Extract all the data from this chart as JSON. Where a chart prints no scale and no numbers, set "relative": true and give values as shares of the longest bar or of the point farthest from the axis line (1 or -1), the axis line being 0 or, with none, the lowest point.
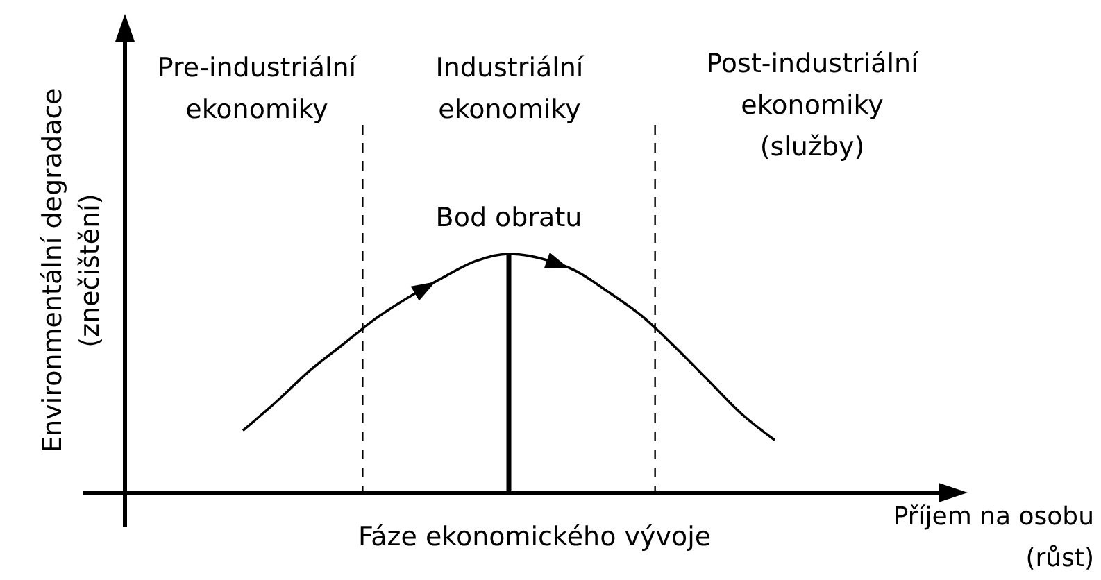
{
  "chart_data": {
    "type": "line",
    "relative": true,
    "ylabel": "Environmentální degradace\n(znečištění)",
    "xlabel": "Fáze ekonomického vývoje",
    "categories": [
      null,
      null,
      null,
      null,
      null,
      null,
      null,
      null,
      null,
      null,
      null,
      null,
      null,
      null,
      null,
      null,
      null
    ],
    "series": [
      {
        "color": "#000000",
        "values": [
          0.26,
          0.38,
          0.51,
          0.62,
          0.73,
          0.82,
          0.9,
          0.97,
          1,
          0.98,
          0.93,
          0.84,
          0.74,
          0.61,
          0.47,
          0.33,
          0.22
        ]
      }
    ],
    "annotations": [
      "Pre-industriální\nekonomiky",
      "Industriální\nekonomiky",
      "Post-industriální\nekonomiky\n(služby)",
      "Příjem na osobu\n(růst)",
      "Bod obratu"
    ],
    "marker": "none",
    "line_style": "solid"
  }
}
